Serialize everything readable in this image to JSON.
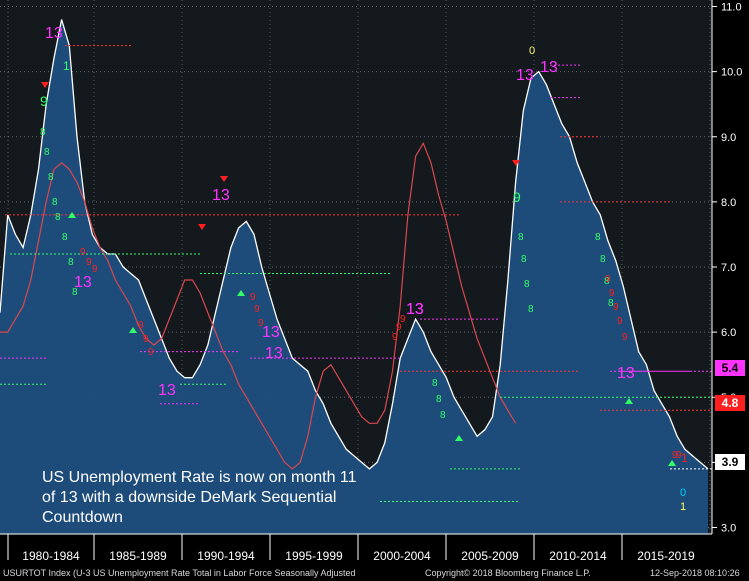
{
  "chart_data": {
    "type": "area",
    "title": "",
    "xlabel": "",
    "ylabel": "",
    "ylim": [
      2.9,
      11.1
    ],
    "x_categories": [
      "1980-1984",
      "1985-1989",
      "1990-1994",
      "1995-1999",
      "2000-2004",
      "2005-2009",
      "2010-2014",
      "2015-2019"
    ],
    "y_ticks": [
      "3.0",
      "4.0",
      "5.0",
      "6.0",
      "7.0",
      "8.0",
      "9.0",
      "10.0",
      "11.0"
    ],
    "series": [
      {
        "values": [
          [
            0,
            6.3
          ],
          [
            1,
            7.8
          ],
          [
            2,
            7.5
          ],
          [
            3,
            7.3
          ],
          [
            4,
            7.8
          ],
          [
            5,
            8.5
          ],
          [
            6,
            9.5
          ],
          [
            7,
            10.2
          ],
          [
            8,
            10.8
          ],
          [
            9,
            10.4
          ],
          [
            10,
            9.0
          ],
          [
            11,
            8.0
          ],
          [
            12,
            7.5
          ],
          [
            13,
            7.3
          ],
          [
            14,
            7.2
          ],
          [
            15,
            7.2
          ],
          [
            16,
            7.0
          ],
          [
            17,
            6.9
          ],
          [
            18,
            6.8
          ],
          [
            19,
            6.5
          ],
          [
            20,
            6.2
          ],
          [
            21,
            5.9
          ],
          [
            22,
            5.6
          ],
          [
            23,
            5.4
          ],
          [
            24,
            5.3
          ],
          [
            25,
            5.3
          ],
          [
            26,
            5.5
          ],
          [
            27,
            5.8
          ],
          [
            28,
            6.3
          ],
          [
            29,
            6.8
          ],
          [
            30,
            7.3
          ],
          [
            31,
            7.6
          ],
          [
            32,
            7.7
          ],
          [
            33,
            7.5
          ],
          [
            34,
            7.0
          ],
          [
            35,
            6.6
          ],
          [
            36,
            6.2
          ],
          [
            37,
            5.9
          ],
          [
            38,
            5.6
          ],
          [
            39,
            5.5
          ],
          [
            40,
            5.4
          ],
          [
            41,
            5.1
          ],
          [
            42,
            4.9
          ],
          [
            43,
            4.6
          ],
          [
            44,
            4.4
          ],
          [
            45,
            4.2
          ],
          [
            46,
            4.1
          ],
          [
            47,
            4.0
          ],
          [
            48,
            3.9
          ],
          [
            49,
            4.0
          ],
          [
            50,
            4.3
          ],
          [
            51,
            4.9
          ],
          [
            52,
            5.6
          ],
          [
            53,
            5.9
          ],
          [
            54,
            6.2
          ],
          [
            55,
            6.0
          ],
          [
            56,
            5.7
          ],
          [
            57,
            5.5
          ],
          [
            58,
            5.3
          ],
          [
            59,
            5.0
          ],
          [
            60,
            4.8
          ],
          [
            61,
            4.6
          ],
          [
            62,
            4.4
          ],
          [
            63,
            4.5
          ],
          [
            64,
            4.7
          ],
          [
            65,
            5.5
          ],
          [
            66,
            6.8
          ],
          [
            67,
            8.3
          ],
          [
            68,
            9.4
          ],
          [
            69,
            9.9
          ],
          [
            70,
            10.0
          ],
          [
            71,
            9.8
          ],
          [
            72,
            9.5
          ],
          [
            73,
            9.2
          ],
          [
            74,
            9.0
          ],
          [
            75,
            8.6
          ],
          [
            76,
            8.3
          ],
          [
            77,
            8.0
          ],
          [
            78,
            7.8
          ],
          [
            79,
            7.4
          ],
          [
            80,
            7.1
          ],
          [
            81,
            6.7
          ],
          [
            82,
            6.2
          ],
          [
            83,
            5.7
          ],
          [
            84,
            5.5
          ],
          [
            85,
            5.1
          ],
          [
            86,
            4.9
          ],
          [
            87,
            4.7
          ],
          [
            88,
            4.4
          ],
          [
            89,
            4.2
          ],
          [
            90,
            4.1
          ],
          [
            91,
            4.0
          ],
          [
            92,
            3.9
          ]
        ]
      },
      {
        "values": [
          [
            0,
            6.0
          ],
          [
            1,
            6.0
          ],
          [
            2,
            6.2
          ],
          [
            3,
            6.4
          ],
          [
            4,
            6.8
          ],
          [
            5,
            7.4
          ],
          [
            6,
            8.0
          ],
          [
            7,
            8.5
          ],
          [
            8,
            8.6
          ],
          [
            9,
            8.5
          ],
          [
            10,
            8.3
          ],
          [
            11,
            8.0
          ],
          [
            12,
            7.6
          ],
          [
            13,
            7.3
          ],
          [
            14,
            7.1
          ],
          [
            15,
            6.8
          ],
          [
            16,
            6.6
          ],
          [
            17,
            6.4
          ],
          [
            18,
            6.1
          ],
          [
            19,
            5.9
          ],
          [
            20,
            5.8
          ],
          [
            21,
            5.9
          ],
          [
            22,
            6.2
          ],
          [
            23,
            6.5
          ],
          [
            24,
            6.8
          ],
          [
            25,
            6.8
          ],
          [
            26,
            6.6
          ],
          [
            27,
            6.3
          ],
          [
            28,
            6.0
          ],
          [
            29,
            5.7
          ],
          [
            30,
            5.5
          ],
          [
            31,
            5.2
          ],
          [
            32,
            5.0
          ],
          [
            33,
            4.8
          ],
          [
            34,
            4.6
          ],
          [
            35,
            4.4
          ],
          [
            36,
            4.2
          ],
          [
            37,
            4.0
          ],
          [
            38,
            3.9
          ],
          [
            39,
            4.0
          ],
          [
            40,
            4.4
          ],
          [
            41,
            5.0
          ],
          [
            42,
            5.4
          ],
          [
            43,
            5.5
          ],
          [
            44,
            5.3
          ],
          [
            45,
            5.1
          ],
          [
            46,
            4.9
          ],
          [
            47,
            4.7
          ],
          [
            48,
            4.6
          ],
          [
            49,
            4.6
          ],
          [
            50,
            4.8
          ],
          [
            51,
            5.4
          ],
          [
            52,
            6.4
          ],
          [
            53,
            7.8
          ],
          [
            54,
            8.7
          ],
          [
            55,
            8.9
          ],
          [
            56,
            8.6
          ],
          [
            57,
            8.1
          ],
          [
            58,
            7.7
          ],
          [
            59,
            7.2
          ],
          [
            60,
            6.7
          ],
          [
            61,
            6.3
          ],
          [
            62,
            5.9
          ],
          [
            63,
            5.6
          ],
          [
            64,
            5.3
          ],
          [
            65,
            5.0
          ],
          [
            66,
            4.8
          ],
          [
            67,
            4.6
          ]
        ]
      }
    ],
    "right_labels": {
      "current": "3.9",
      "mag_level": "5.4",
      "red_level": "4.8"
    },
    "demark_labels": [
      "13",
      "9",
      "13",
      "13",
      "13",
      "13",
      "13",
      "13",
      "13",
      "13",
      "13",
      "13",
      "9",
      "1",
      "1",
      "0",
      "1",
      "0"
    ]
  },
  "annotation": {
    "line1": "US Unemployment Rate is now on month 11",
    "line2": "of 13 with a downside DeMark Sequential",
    "line3": "Countdown"
  },
  "footer": {
    "left": "USURTOT Index (U-3 US Unemployment Rate Total in Labor Force Seasonally Adjusted",
    "center": "Copyright© 2018 Bloomberg Finance L.P.",
    "right": "12-Sep-2018 08:10:26"
  },
  "colors": {
    "background": "#14191e",
    "area": "#1f4f7f",
    "line": "#ffffff",
    "ma": "#d9484f",
    "green": "#33ff66",
    "magenta": "#ff33ff",
    "red": "#ff1f1f",
    "yellow": "#ffff66"
  }
}
